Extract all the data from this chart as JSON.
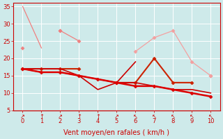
{
  "x": [
    0,
    1,
    2,
    3,
    4,
    5,
    6,
    7,
    8,
    9,
    10
  ],
  "lines": [
    {
      "y": [
        35,
        23,
        null,
        null,
        null,
        null,
        null,
        null,
        null,
        null,
        null
      ],
      "color": "#f08080",
      "lw": 0.9,
      "marker": null,
      "ms": 2.5,
      "zorder": 2
    },
    {
      "y": [
        null,
        null,
        28,
        25,
        null,
        null,
        null,
        null,
        null,
        null,
        15
      ],
      "color": "#f08080",
      "lw": 0.9,
      "marker": "D",
      "ms": 2.5,
      "zorder": 2
    },
    {
      "y": [
        23,
        null,
        28,
        null,
        null,
        null,
        null,
        null,
        null,
        null,
        null
      ],
      "color": "#f08080",
      "lw": 0.9,
      "marker": "D",
      "ms": 2.5,
      "zorder": 2
    },
    {
      "y": [
        null,
        null,
        null,
        null,
        null,
        null,
        22,
        26,
        28,
        19,
        15
      ],
      "color": "#f4a0a0",
      "lw": 0.9,
      "marker": "D",
      "ms": 2.5,
      "zorder": 2
    },
    {
      "y": [
        17,
        17,
        17,
        17,
        null,
        null,
        null,
        null,
        null,
        null,
        null
      ],
      "color": "#cc2200",
      "lw": 1.5,
      "marker": "D",
      "ms": 2.5,
      "zorder": 3
    },
    {
      "y": [
        null,
        null,
        null,
        null,
        null,
        13,
        13,
        20,
        13,
        13,
        null
      ],
      "color": "#cc2200",
      "lw": 1.5,
      "marker": "D",
      "ms": 2.5,
      "zorder": 3
    },
    {
      "y": [
        17,
        17,
        17,
        15,
        11,
        13,
        19,
        null,
        null,
        null,
        null
      ],
      "color": "#cc0000",
      "lw": 1.2,
      "marker": null,
      "ms": 2.5,
      "zorder": 3
    },
    {
      "y": [
        17,
        16,
        16,
        15,
        14,
        13,
        13,
        12,
        11,
        11,
        10
      ],
      "color": "#cc0000",
      "lw": 1.2,
      "marker": null,
      "ms": 2.5,
      "zorder": 3
    },
    {
      "y": [
        17,
        16,
        16,
        15,
        14,
        13,
        12,
        12,
        11,
        10,
        9
      ],
      "color": "#dd0000",
      "lw": 1.8,
      "marker": "D",
      "ms": 2.5,
      "zorder": 4
    }
  ],
  "xlabel": "Vent moyen/en rafales ( km/h )",
  "xlim": [
    -0.5,
    10.5
  ],
  "ylim": [
    5,
    36
  ],
  "yticks": [
    5,
    10,
    15,
    20,
    25,
    30,
    35
  ],
  "xticks": [
    0,
    1,
    2,
    3,
    4,
    5,
    6,
    7,
    8,
    9,
    10
  ],
  "bg_color": "#ceeaea",
  "grid_color": "#ffffff",
  "tick_color": "#cc0000",
  "label_color": "#cc0000",
  "axis_color": "#cc0000",
  "arrow_labels": [
    "↗",
    "↑",
    "↗",
    "↑",
    "↑",
    "↗",
    "↖",
    "↖",
    "↖",
    "↖",
    "↖"
  ]
}
